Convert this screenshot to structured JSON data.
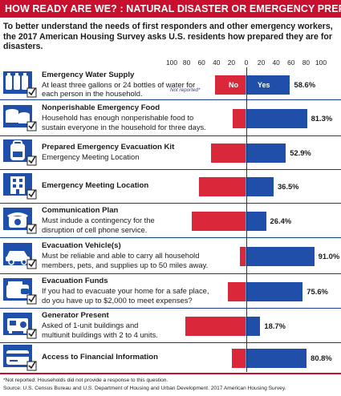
{
  "header": {
    "title": "HOW READY ARE WE?  :  NATURAL DISASTER OR EMERGENCY PREPAREDNESS",
    "intro": "To better understand the needs of first responders and other emergency workers, the 2017 American Housing Survey asks U.S. residents how prepared they are for disasters."
  },
  "colors": {
    "banner": "#c8102e",
    "no": "#d9283a",
    "not_reported": "#8a8fc7",
    "yes": "#1f4fa8",
    "title_text": "#ffffff"
  },
  "chart_data": {
    "type": "bar",
    "orientation": "horizontal diverging",
    "axis_ticks": [
      "100",
      "80",
      "60",
      "40",
      "20",
      "0",
      "20",
      "40",
      "60",
      "80",
      "100"
    ],
    "xlim": [
      -100,
      100
    ],
    "legend_labels": {
      "no": "No",
      "yes": "Yes",
      "not_reported": "Not reported*"
    },
    "categories": [
      {
        "title": "Emergency Water Supply",
        "desc": [
          "At least three gallons or 24 bottles of water for",
          "each person in the household."
        ],
        "yes": 58.6,
        "not_reported": 1.5,
        "label": "58.6%",
        "icon": "water-bottles-icon"
      },
      {
        "title": "Nonperishable Emergency Food",
        "desc": [
          "Household has enough nonperishable food to",
          "sustain everyone in the household for three days."
        ],
        "yes": 81.3,
        "not_reported": 1.2,
        "label": "81.3%",
        "icon": "canned-food-icon"
      },
      {
        "title": "Prepared Emergency Evacuation Kit",
        "desc": [
          "Emergency Meeting Location"
        ],
        "yes": 52.9,
        "not_reported": 1.5,
        "label": "52.9%",
        "icon": "backpack-icon"
      },
      {
        "title": "Emergency Meeting Location",
        "desc": [],
        "yes": 36.5,
        "not_reported": 1.3,
        "label": "36.5%",
        "icon": "building-icon"
      },
      {
        "title": "Communication Plan",
        "desc": [
          "Must indude a contingency for the",
          "disruption of cell phone service."
        ],
        "yes": 26.4,
        "not_reported": 1.5,
        "label": "26.4%",
        "icon": "telephone-icon"
      },
      {
        "title": "Evacuation Vehicle(s)",
        "desc": [
          "Must be reliable and able to carry all household",
          "members, pets, and supplies up to 50 miles away."
        ],
        "yes": 91.0,
        "not_reported": 1.3,
        "label": "91.0%",
        "icon": "car-icon"
      },
      {
        "title": "Evacuation Funds",
        "desc": [
          "If you had to evacuate your home for a safe place,",
          "do you have up to $2,000 to meet expenses?"
        ],
        "yes": 75.6,
        "not_reported": 1.4,
        "label": "75.6%",
        "icon": "wallet-icon"
      },
      {
        "title": "Generator Present",
        "desc": [
          "Asked of 1-unit buildings and",
          "multiunit buildings with 2 to 4 units."
        ],
        "yes": 18.7,
        "not_reported": 1.0,
        "label": "18.7%",
        "icon": "generator-icon"
      },
      {
        "title": "Access to Financial Information",
        "desc": [],
        "yes": 80.8,
        "not_reported": 1.4,
        "label": "80.8%",
        "icon": "credit-card-icon"
      }
    ]
  },
  "footer": {
    "note": "*Not reported: Households did not provide a response to this question.",
    "source": "Source: U.S. Census Bureau and U.S. Department of Housing and Urban Development. 2017 American Housing Survey."
  }
}
